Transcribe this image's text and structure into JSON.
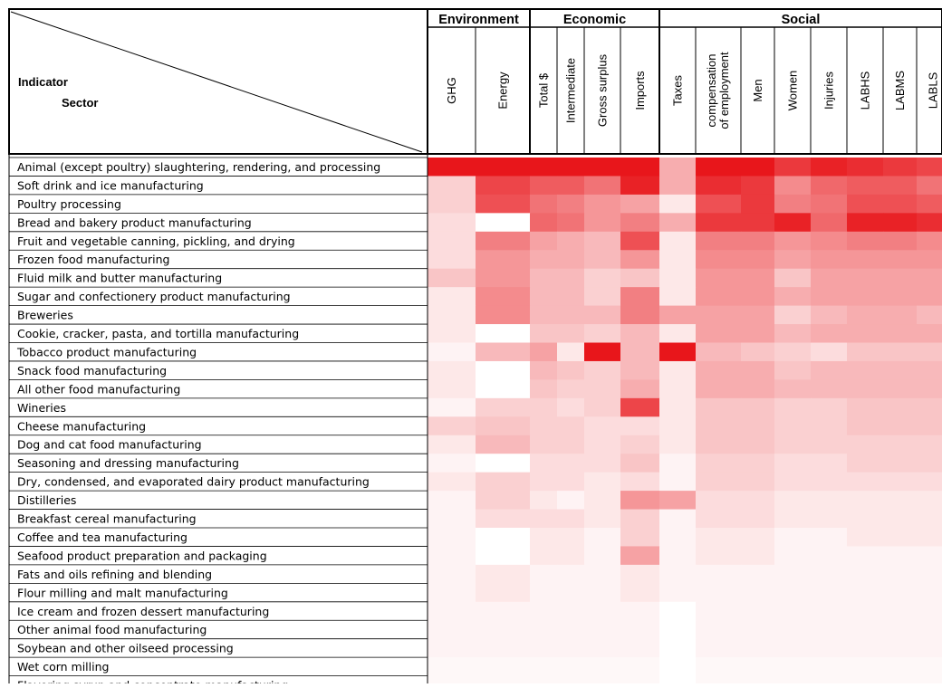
{
  "chart_data": {
    "type": "heatmap",
    "corner": {
      "row_axis": "Indicator",
      "col_axis": "Sector"
    },
    "groups": [
      {
        "name": "Environment",
        "columns": [
          "GHG",
          "Energy"
        ]
      },
      {
        "name": "Economic",
        "columns": [
          "Total $",
          "Intermediate",
          "Gross surplus",
          "Imports"
        ]
      },
      {
        "name": "Social",
        "columns": [
          "Taxes",
          "compensation of employment",
          "Men",
          "Women",
          "Injuries",
          "LABHS",
          "LABMS",
          "LABLS"
        ]
      }
    ],
    "columns": [
      "GHG",
      "Energy",
      "Total $",
      "Intermediate",
      "Gross surplus",
      "Imports",
      "Taxes",
      "compensation of employment",
      "Men",
      "Women",
      "Injuries",
      "LABHS",
      "LABMS",
      "LABLS"
    ],
    "rows": [
      "Animal (except poultry) slaughtering, rendering, and processing",
      "Soft drink and ice manufacturing",
      "Poultry processing",
      "Bread and bakery product manufacturing",
      "Fruit and vegetable canning, pickling, and drying",
      "Frozen food manufacturing",
      "Fluid milk and butter manufacturing",
      "Sugar and confectionery product manufacturing",
      "Breweries",
      "Cookie, cracker, pasta, and tortilla manufacturing",
      "Tobacco product manufacturing",
      "Snack food manufacturing",
      "All other food manufacturing",
      "Wineries",
      "Cheese manufacturing",
      "Dog and cat food manufacturing",
      "Seasoning and dressing manufacturing",
      "Dry, condensed, and evaporated dairy product manufacturing",
      "Distilleries",
      "Breakfast cereal manufacturing",
      "Coffee and tea manufacturing",
      "Seafood product preparation and packaging",
      "Fats and oils refining and blending",
      "Flour milling and malt manufacturing",
      "Ice cream and frozen dessert manufacturing",
      "Other animal food manufacturing",
      "Soybean and other oilseed processing",
      "Wet corn milling",
      "Flavoring syrup and concentrate manufacturing"
    ],
    "values": [
      [
        1.0,
        1.0,
        1.0,
        1.0,
        1.0,
        1.0,
        0.35,
        1.0,
        1.0,
        0.85,
        0.95,
        0.9,
        0.85,
        0.8
      ],
      [
        0.2,
        0.8,
        0.7,
        0.7,
        0.6,
        0.95,
        0.35,
        0.9,
        0.85,
        0.5,
        0.65,
        0.7,
        0.7,
        0.6
      ],
      [
        0.2,
        0.75,
        0.6,
        0.55,
        0.45,
        0.4,
        0.1,
        0.75,
        0.85,
        0.55,
        0.6,
        0.75,
        0.75,
        0.7
      ],
      [
        0.15,
        0.0,
        0.65,
        0.6,
        0.45,
        0.55,
        0.35,
        0.85,
        0.85,
        0.95,
        0.65,
        0.95,
        0.95,
        0.9
      ],
      [
        0.15,
        0.55,
        0.4,
        0.35,
        0.3,
        0.75,
        0.1,
        0.55,
        0.55,
        0.45,
        0.5,
        0.55,
        0.55,
        0.5
      ],
      [
        0.15,
        0.45,
        0.35,
        0.35,
        0.3,
        0.45,
        0.1,
        0.5,
        0.5,
        0.4,
        0.45,
        0.45,
        0.45,
        0.45
      ],
      [
        0.25,
        0.45,
        0.3,
        0.3,
        0.2,
        0.25,
        0.1,
        0.45,
        0.45,
        0.25,
        0.4,
        0.4,
        0.4,
        0.4
      ],
      [
        0.1,
        0.5,
        0.3,
        0.3,
        0.2,
        0.55,
        0.1,
        0.45,
        0.45,
        0.35,
        0.4,
        0.4,
        0.4,
        0.4
      ],
      [
        0.1,
        0.5,
        0.3,
        0.3,
        0.3,
        0.55,
        0.4,
        0.4,
        0.4,
        0.2,
        0.3,
        0.35,
        0.35,
        0.3
      ],
      [
        0.1,
        0.0,
        0.25,
        0.25,
        0.2,
        0.3,
        0.1,
        0.4,
        0.4,
        0.3,
        0.35,
        0.35,
        0.35,
        0.35
      ],
      [
        0.05,
        0.3,
        0.4,
        0.1,
        1.0,
        0.3,
        1.0,
        0.3,
        0.25,
        0.2,
        0.15,
        0.25,
        0.25,
        0.25
      ],
      [
        0.1,
        0.0,
        0.3,
        0.25,
        0.2,
        0.3,
        0.1,
        0.35,
        0.35,
        0.25,
        0.3,
        0.3,
        0.3,
        0.3
      ],
      [
        0.1,
        0.0,
        0.25,
        0.2,
        0.2,
        0.35,
        0.1,
        0.35,
        0.35,
        0.3,
        0.3,
        0.3,
        0.3,
        0.3
      ],
      [
        0.05,
        0.2,
        0.2,
        0.15,
        0.2,
        0.8,
        0.1,
        0.25,
        0.25,
        0.2,
        0.2,
        0.25,
        0.25,
        0.25
      ],
      [
        0.2,
        0.25,
        0.2,
        0.2,
        0.15,
        0.15,
        0.1,
        0.25,
        0.25,
        0.2,
        0.2,
        0.25,
        0.25,
        0.25
      ],
      [
        0.1,
        0.3,
        0.2,
        0.2,
        0.15,
        0.2,
        0.1,
        0.25,
        0.25,
        0.2,
        0.2,
        0.2,
        0.2,
        0.2
      ],
      [
        0.05,
        0.0,
        0.15,
        0.15,
        0.15,
        0.25,
        0.05,
        0.2,
        0.2,
        0.15,
        0.15,
        0.2,
        0.2,
        0.2
      ],
      [
        0.1,
        0.2,
        0.15,
        0.15,
        0.1,
        0.15,
        0.05,
        0.2,
        0.2,
        0.15,
        0.15,
        0.15,
        0.15,
        0.15
      ],
      [
        0.05,
        0.2,
        0.1,
        0.05,
        0.1,
        0.45,
        0.4,
        0.15,
        0.15,
        0.1,
        0.1,
        0.1,
        0.1,
        0.1
      ],
      [
        0.05,
        0.15,
        0.15,
        0.15,
        0.1,
        0.2,
        0.05,
        0.15,
        0.15,
        0.1,
        0.1,
        0.1,
        0.1,
        0.1
      ],
      [
        0.05,
        0.0,
        0.1,
        0.1,
        0.05,
        0.2,
        0.05,
        0.1,
        0.1,
        0.05,
        0.05,
        0.1,
        0.1,
        0.1
      ],
      [
        0.05,
        0.0,
        0.1,
        0.1,
        0.05,
        0.4,
        0.05,
        0.1,
        0.1,
        0.05,
        0.05,
        0.05,
        0.05,
        0.05
      ],
      [
        0.05,
        0.1,
        0.05,
        0.05,
        0.05,
        0.1,
        0.05,
        0.05,
        0.05,
        0.05,
        0.05,
        0.05,
        0.05,
        0.05
      ],
      [
        0.05,
        0.1,
        0.05,
        0.05,
        0.05,
        0.1,
        0.05,
        0.05,
        0.05,
        0.05,
        0.05,
        0.05,
        0.05,
        0.05
      ],
      [
        0.05,
        0.05,
        0.05,
        0.05,
        0.05,
        0.05,
        0.0,
        0.05,
        0.05,
        0.05,
        0.05,
        0.05,
        0.05,
        0.05
      ],
      [
        0.05,
        0.05,
        0.05,
        0.05,
        0.05,
        0.05,
        0.0,
        0.05,
        0.05,
        0.05,
        0.05,
        0.05,
        0.05,
        0.05
      ],
      [
        0.05,
        0.05,
        0.05,
        0.05,
        0.05,
        0.05,
        0.0,
        0.05,
        0.05,
        0.05,
        0.05,
        0.05,
        0.05,
        0.05
      ],
      [
        0.03,
        0.03,
        0.03,
        0.03,
        0.03,
        0.03,
        0.0,
        0.03,
        0.03,
        0.03,
        0.03,
        0.03,
        0.03,
        0.03
      ],
      [
        0.03,
        0.03,
        0.03,
        0.03,
        0.03,
        0.03,
        0.0,
        0.03,
        0.03,
        0.03,
        0.03,
        0.03,
        0.03,
        0.03
      ]
    ],
    "color_scale": {
      "low": "#ffffff",
      "high": "#e8161b"
    }
  }
}
